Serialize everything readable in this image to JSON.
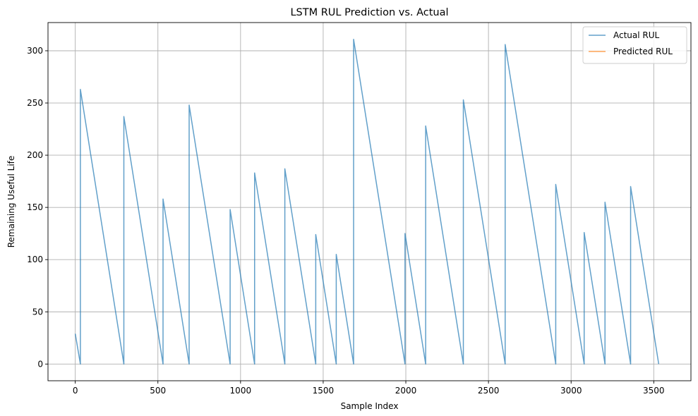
{
  "chart_data": {
    "type": "line",
    "title": "LSTM RUL Prediction vs. Actual",
    "xlabel": "Sample Index",
    "ylabel": "Remaining Useful Life",
    "xlim": [
      -165,
      3725
    ],
    "ylim": [
      -16,
      327
    ],
    "xticks": [
      0,
      500,
      1000,
      1500,
      2000,
      2500,
      3000,
      3500
    ],
    "yticks": [
      0,
      50,
      100,
      150,
      200,
      250,
      300
    ],
    "grid": true,
    "legend_position": "top-right",
    "series": [
      {
        "name": "Actual RUL",
        "color": "#1f77b4",
        "alpha": 0.7,
        "x": [
          0,
          31,
          31,
          294,
          294,
          531,
          531,
          689,
          689,
          937,
          937,
          1085,
          1085,
          1268,
          1268,
          1455,
          1455,
          1579,
          1579,
          1684,
          1684,
          1995,
          1995,
          2120,
          2120,
          2348,
          2348,
          2601,
          2601,
          2907,
          2907,
          3079,
          3079,
          3205,
          3205,
          3360,
          3360,
          3530
        ],
        "y": [
          29,
          0,
          263,
          0,
          237,
          0,
          158,
          0,
          248,
          0,
          148,
          0,
          183,
          0,
          187,
          0,
          124,
          0,
          105,
          0,
          311,
          0,
          125,
          0,
          228,
          0,
          253,
          0,
          306,
          0,
          172,
          0,
          126,
          0,
          155,
          0,
          170,
          0
        ]
      },
      {
        "name": "Predicted RUL",
        "color": "#ff7f0e",
        "alpha": 0.7,
        "x": [],
        "y": []
      }
    ]
  }
}
